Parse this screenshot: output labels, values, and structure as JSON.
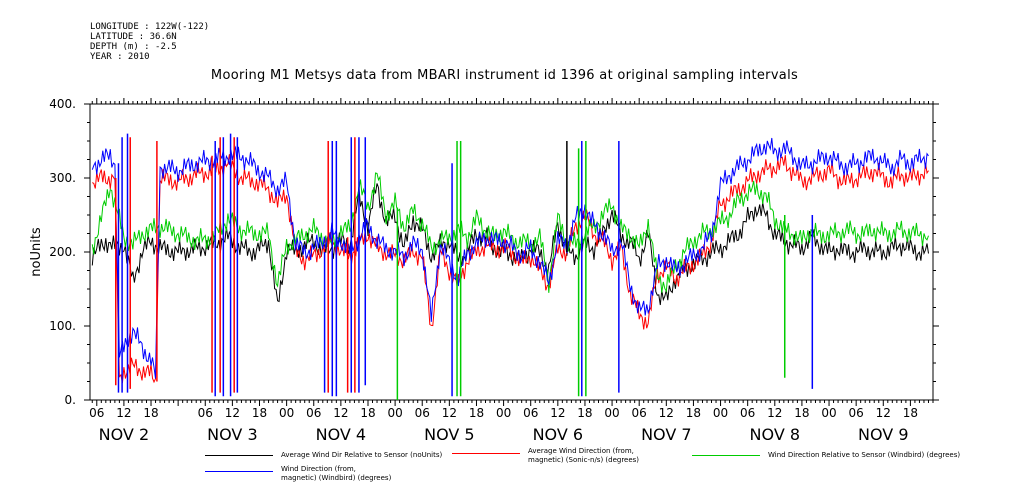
{
  "meta": {
    "longitude": "LONGITUDE : 122W(-122)",
    "latitude": "LATITUDE : 36.6N",
    "depth": "DEPTH (m) : -2.5",
    "year": "YEAR : 2010"
  },
  "chart_data": {
    "type": "line",
    "title": "Mooring M1 Metsys data from MBARI instrument id 1396 at original sampling intervals",
    "ylabel": "noUnits",
    "xlabel": "",
    "ylim": [
      0,
      400
    ],
    "yticks": [
      0,
      100,
      200,
      300,
      400
    ],
    "ytick_labels": [
      "0.",
      "100.",
      "200.",
      "300.",
      "400."
    ],
    "xlim_hours": [
      4.5,
      191
    ],
    "hour_tick_labels": [
      {
        "h": 6,
        "label": "06"
      },
      {
        "h": 12,
        "label": "12"
      },
      {
        "h": 18,
        "label": "18"
      },
      {
        "h": 30,
        "label": "06"
      },
      {
        "h": 36,
        "label": "12"
      },
      {
        "h": 42,
        "label": "18"
      },
      {
        "h": 48,
        "label": "00"
      },
      {
        "h": 54,
        "label": "06"
      },
      {
        "h": 60,
        "label": "12"
      },
      {
        "h": 66,
        "label": "18"
      },
      {
        "h": 72,
        "label": "00"
      },
      {
        "h": 78,
        "label": "06"
      },
      {
        "h": 84,
        "label": "12"
      },
      {
        "h": 90,
        "label": "18"
      },
      {
        "h": 96,
        "label": "00"
      },
      {
        "h": 102,
        "label": "06"
      },
      {
        "h": 108,
        "label": "12"
      },
      {
        "h": 114,
        "label": "18"
      },
      {
        "h": 120,
        "label": "00"
      },
      {
        "h": 126,
        "label": "06"
      },
      {
        "h": 132,
        "label": "12"
      },
      {
        "h": 138,
        "label": "18"
      },
      {
        "h": 144,
        "label": "00"
      },
      {
        "h": 150,
        "label": "06"
      },
      {
        "h": 156,
        "label": "12"
      },
      {
        "h": 162,
        "label": "18"
      },
      {
        "h": 168,
        "label": "00"
      },
      {
        "h": 174,
        "label": "06"
      },
      {
        "h": 180,
        "label": "12"
      },
      {
        "h": 186,
        "label": "18"
      }
    ],
    "day_labels": [
      {
        "h": 12,
        "label": "NOV  2"
      },
      {
        "h": 36,
        "label": "NOV  3"
      },
      {
        "h": 60,
        "label": "NOV  4"
      },
      {
        "h": 84,
        "label": "NOV  5"
      },
      {
        "h": 108,
        "label": "NOV  6"
      },
      {
        "h": 132,
        "label": "NOV  7"
      },
      {
        "h": 156,
        "label": "NOV  8"
      },
      {
        "h": 180,
        "label": "NOV  9"
      }
    ],
    "grid": false,
    "legend_position": "bottom",
    "series": [
      {
        "name": "Average Wind Dir Relative to Sensor (noUnits)",
        "color": "#000000",
        "x": [
          5,
          8,
          10,
          12,
          14,
          16,
          18,
          20,
          24,
          28,
          32,
          35,
          38,
          41,
          44,
          46,
          48,
          50,
          52,
          54,
          56,
          58,
          60,
          62,
          64,
          66,
          68,
          70,
          72,
          74,
          76,
          78,
          80,
          82,
          84,
          86,
          88,
          90,
          92,
          94,
          96,
          98,
          100,
          102,
          104,
          106,
          108,
          110,
          112,
          114,
          116,
          118,
          120,
          122,
          124,
          126,
          128,
          130,
          132,
          134,
          136,
          138,
          140,
          142,
          144,
          146,
          148,
          150,
          152,
          154,
          156,
          158,
          160,
          162,
          164,
          166,
          168,
          170,
          172,
          174,
          176,
          178,
          180,
          182,
          184,
          186,
          188,
          190
        ],
        "y": [
          195,
          215,
          205,
          210,
          160,
          200,
          215,
          205,
          200,
          205,
          210,
          220,
          205,
          200,
          215,
          125,
          205,
          200,
          210,
          215,
          200,
          205,
          215,
          210,
          275,
          235,
          290,
          240,
          250,
          205,
          245,
          230,
          195,
          210,
          215,
          190,
          200,
          225,
          220,
          205,
          200,
          195,
          190,
          205,
          200,
          175,
          240,
          200,
          195,
          210,
          205,
          225,
          255,
          220,
          215,
          190,
          225,
          145,
          135,
          165,
          175,
          185,
          190,
          200,
          205,
          215,
          225,
          245,
          260,
          250,
          225,
          215,
          210,
          205,
          220,
          210,
          200,
          205,
          200,
          200,
          205,
          200,
          200,
          205,
          210,
          205,
          200,
          198
        ]
      },
      {
        "name": "Average Wind Direction (from, magnetic) (Sonic-n/s) (degrees)",
        "color": "#ff0000",
        "x": [
          5,
          7,
          9,
          10,
          11,
          12,
          14,
          16,
          18,
          19,
          20,
          24,
          28,
          32,
          35,
          38,
          41,
          44,
          46,
          48,
          50,
          52,
          54,
          56,
          58,
          60,
          62,
          64,
          66,
          68,
          70,
          72,
          74,
          76,
          78,
          80,
          82,
          84,
          86,
          88,
          90,
          92,
          94,
          96,
          98,
          100,
          102,
          104,
          106,
          108,
          110,
          112,
          114,
          116,
          118,
          120,
          122,
          124,
          126,
          128,
          130,
          132,
          134,
          136,
          138,
          140,
          142,
          144,
          146,
          148,
          150,
          152,
          154,
          156,
          158,
          160,
          162,
          164,
          166,
          168,
          170,
          172,
          174,
          176,
          178,
          180,
          182,
          184,
          186,
          188,
          190
        ],
        "y": [
          295,
          300,
          300,
          300,
          25,
          40,
          45,
          40,
          35,
          25,
          300,
          295,
          305,
          310,
          320,
          300,
          295,
          285,
          265,
          280,
          200,
          190,
          195,
          205,
          215,
          200,
          195,
          210,
          225,
          205,
          200,
          195,
          190,
          200,
          195,
          95,
          200,
          175,
          155,
          190,
          200,
          210,
          205,
          205,
          200,
          185,
          195,
          175,
          155,
          205,
          200,
          235,
          250,
          225,
          215,
          190,
          205,
          145,
          115,
          105,
          170,
          180,
          165,
          175,
          185,
          195,
          215,
          265,
          275,
          285,
          295,
          305,
          310,
          315,
          320,
          310,
          295,
          300,
          305,
          310,
          300,
          295,
          300,
          305,
          310,
          300,
          295,
          305,
          300,
          305,
          310
        ]
      },
      {
        "name": "Wind Direction Relative to Sensor (Windbird) (degrees)",
        "color": "#00cc00",
        "x": [
          5,
          7,
          9,
          12,
          14,
          16,
          18,
          20,
          24,
          28,
          32,
          35,
          38,
          41,
          44,
          46,
          48,
          50,
          52,
          54,
          56,
          58,
          60,
          62,
          64,
          66,
          68,
          70,
          72,
          74,
          76,
          78,
          80,
          82,
          84,
          86,
          88,
          90,
          92,
          94,
          96,
          98,
          100,
          102,
          104,
          106,
          108,
          110,
          112,
          114,
          116,
          118,
          120,
          122,
          124,
          126,
          128,
          130,
          132,
          134,
          136,
          138,
          140,
          142,
          144,
          146,
          148,
          150,
          152,
          154,
          156,
          158,
          160,
          162,
          164,
          166,
          168,
          170,
          172,
          174,
          176,
          178,
          180,
          182,
          184,
          186,
          188,
          190
        ],
        "y": [
          205,
          245,
          290,
          220,
          210,
          225,
          230,
          235,
          225,
          215,
          220,
          245,
          230,
          225,
          225,
          155,
          210,
          215,
          225,
          230,
          220,
          210,
          230,
          230,
          290,
          260,
          305,
          250,
          265,
          235,
          255,
          240,
          205,
          215,
          220,
          230,
          220,
          245,
          230,
          220,
          230,
          215,
          215,
          210,
          220,
          160,
          245,
          215,
          210,
          225,
          235,
          250,
          265,
          230,
          225,
          205,
          240,
          165,
          155,
          180,
          200,
          215,
          225,
          230,
          240,
          250,
          270,
          280,
          285,
          275,
          245,
          230,
          225,
          215,
          230,
          220,
          225,
          225,
          230,
          225,
          225,
          230,
          225,
          225,
          230,
          225,
          225,
          222
        ]
      },
      {
        "name": "Wind Direction (from, magnetic) (Windbird) (degrees)",
        "color": "#0000ff",
        "x": [
          5,
          7,
          9,
          10,
          11,
          12,
          14,
          16,
          18,
          19,
          20,
          24,
          28,
          32,
          35,
          38,
          41,
          44,
          46,
          48,
          50,
          52,
          54,
          56,
          58,
          60,
          62,
          64,
          66,
          68,
          70,
          72,
          74,
          76,
          78,
          80,
          82,
          84,
          86,
          88,
          90,
          92,
          94,
          96,
          98,
          100,
          102,
          104,
          106,
          108,
          110,
          112,
          114,
          116,
          118,
          120,
          122,
          124,
          126,
          128,
          130,
          132,
          134,
          136,
          138,
          140,
          142,
          144,
          146,
          148,
          150,
          152,
          154,
          156,
          158,
          160,
          162,
          164,
          166,
          168,
          170,
          172,
          174,
          176,
          178,
          180,
          182,
          184,
          186,
          188,
          190
        ],
        "y": [
          315,
          325,
          330,
          320,
          60,
          70,
          95,
          70,
          55,
          30,
          315,
          310,
          320,
          325,
          330,
          330,
          315,
          300,
          285,
          295,
          210,
          200,
          205,
          215,
          225,
          215,
          200,
          220,
          235,
          215,
          205,
          200,
          195,
          210,
          205,
          110,
          210,
          185,
          165,
          200,
          210,
          220,
          215,
          215,
          205,
          195,
          205,
          185,
          160,
          215,
          210,
          245,
          260,
          235,
          225,
          200,
          215,
          155,
          120,
          125,
          180,
          190,
          175,
          185,
          195,
          205,
          225,
          290,
          305,
          315,
          325,
          335,
          345,
          335,
          340,
          330,
          315,
          320,
          325,
          330,
          320,
          315,
          320,
          325,
          330,
          320,
          315,
          325,
          320,
          325,
          330
        ]
      }
    ],
    "spikes": [
      {
        "series": 1,
        "h": 10.2,
        "from": 300,
        "to": 20
      },
      {
        "series": 3,
        "h": 10.8,
        "from": 320,
        "to": 10
      },
      {
        "series": 3,
        "h": 11.6,
        "from": 10,
        "to": 355
      },
      {
        "series": 3,
        "h": 12.8,
        "from": 360,
        "to": 10
      },
      {
        "series": 1,
        "h": 13.4,
        "from": 15,
        "to": 355
      },
      {
        "series": 1,
        "h": 19.3,
        "from": 25,
        "to": 350
      },
      {
        "series": 1,
        "h": 31.5,
        "from": 330,
        "to": 10
      },
      {
        "series": 3,
        "h": 32.2,
        "from": 350,
        "to": 5
      },
      {
        "series": 1,
        "h": 33.3,
        "from": 10,
        "to": 355
      },
      {
        "series": 3,
        "h": 34.0,
        "from": 355,
        "to": 5
      },
      {
        "series": 3,
        "h": 35.6,
        "from": 5,
        "to": 360
      },
      {
        "series": 1,
        "h": 36.4,
        "from": 355,
        "to": 10
      },
      {
        "series": 3,
        "h": 37.1,
        "from": 10,
        "to": 355
      },
      {
        "series": 3,
        "h": 56.4,
        "from": 200,
        "to": 10
      },
      {
        "series": 1,
        "h": 57.2,
        "from": 10,
        "to": 350
      },
      {
        "series": 3,
        "h": 58.1,
        "from": 350,
        "to": 5
      },
      {
        "series": 3,
        "h": 59.0,
        "from": 5,
        "to": 350
      },
      {
        "series": 1,
        "h": 61.5,
        "from": 220,
        "to": 10
      },
      {
        "series": 3,
        "h": 62.3,
        "from": 10,
        "to": 355
      },
      {
        "series": 1,
        "h": 63.1,
        "from": 355,
        "to": 10
      },
      {
        "series": 3,
        "h": 64.0,
        "from": 10,
        "to": 355
      },
      {
        "series": 3,
        "h": 65.4,
        "from": 355,
        "to": 20
      },
      {
        "series": 2,
        "h": 72.5,
        "from": 260,
        "to": 0
      },
      {
        "series": 3,
        "h": 84.6,
        "from": 320,
        "to": 5
      },
      {
        "series": 2,
        "h": 85.7,
        "from": 5,
        "to": 350
      },
      {
        "series": 2,
        "h": 86.5,
        "from": 350,
        "to": 5
      },
      {
        "series": 0,
        "h": 110.0,
        "from": 200,
        "to": 350
      },
      {
        "series": 2,
        "h": 112.6,
        "from": 340,
        "to": 5
      },
      {
        "series": 3,
        "h": 113.3,
        "from": 5,
        "to": 350
      },
      {
        "series": 2,
        "h": 114.2,
        "from": 350,
        "to": 5
      },
      {
        "series": 3,
        "h": 121.5,
        "from": 350,
        "to": 10
      },
      {
        "series": 2,
        "h": 158.2,
        "from": 250,
        "to": 30
      },
      {
        "series": 3,
        "h": 164.3,
        "from": 250,
        "to": 15
      }
    ]
  },
  "legend": [
    {
      "text": "Average Wind Dir Relative to Sensor (noUnits)",
      "color": "#000000"
    },
    {
      "text": "Average Wind Direction (from,\nmagnetic) (Sonic-n/s) (degrees)",
      "color": "#ff0000"
    },
    {
      "text": "Wind Direction Relative to Sensor (Windbird) (degrees)",
      "color": "#00cc00"
    },
    {
      "text": "Wind Direction (from,\nmagnetic) (Windbird) (degrees)",
      "color": "#0000ff"
    }
  ]
}
